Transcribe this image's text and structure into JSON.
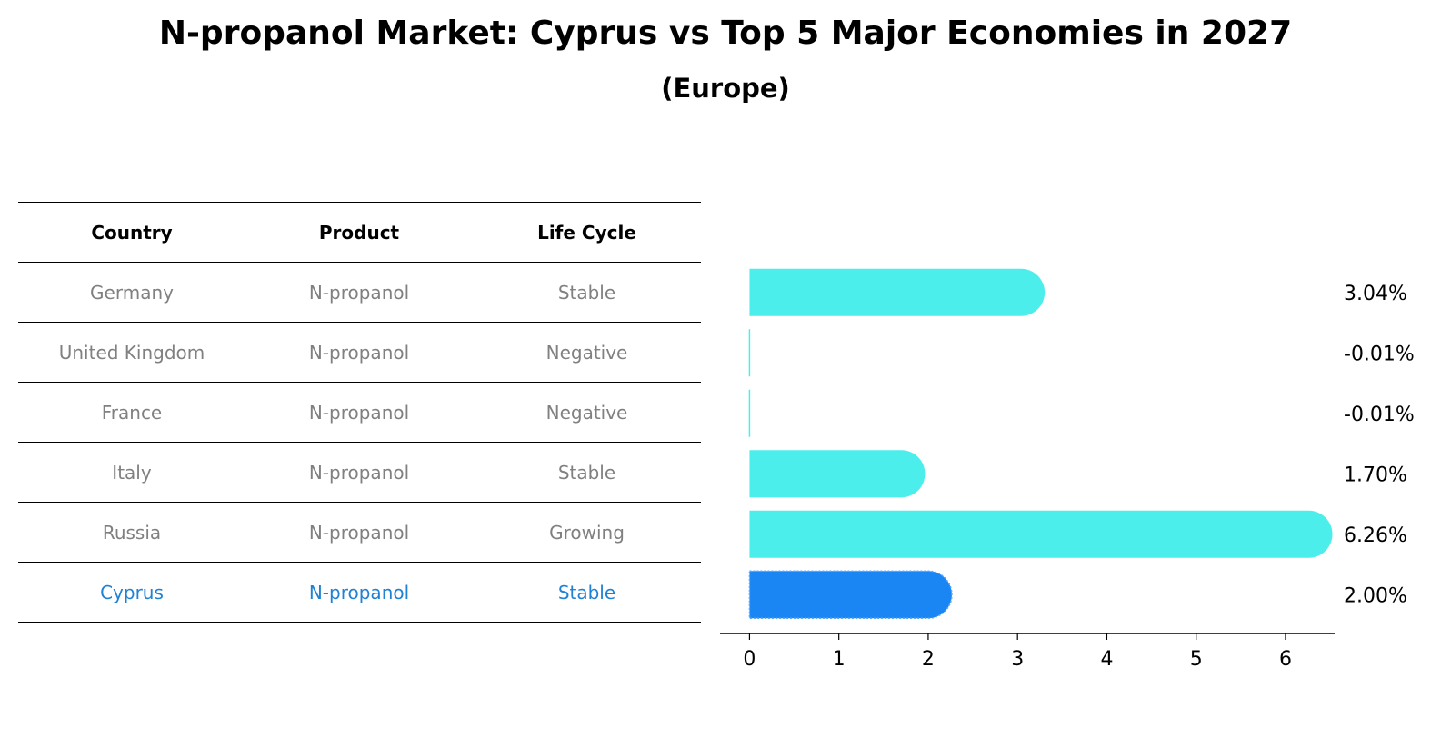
{
  "title": "N-propanol Market: Cyprus vs Top 5 Major Economies in 2027",
  "subtitle": "(Europe)",
  "table": {
    "headers": [
      "Country",
      "Product",
      "Life Cycle"
    ],
    "rows": [
      {
        "country": "Germany",
        "product": "N-propanol",
        "life_cycle": "Stable"
      },
      {
        "country": "United Kingdom",
        "product": "N-propanol",
        "life_cycle": "Negative"
      },
      {
        "country": "France",
        "product": "N-propanol",
        "life_cycle": "Negative"
      },
      {
        "country": "Italy",
        "product": "N-propanol",
        "life_cycle": "Stable"
      },
      {
        "country": "Russia",
        "product": "N-propanol",
        "life_cycle": "Growing"
      },
      {
        "country": "Cyprus",
        "product": "N-propanol",
        "life_cycle": "Stable"
      }
    ],
    "highlight_row": "Cyprus",
    "text_color": "#808080",
    "highlight_color": "#1f82d4"
  },
  "chart_data": {
    "type": "bar",
    "orientation": "horizontal",
    "categories": [
      "Germany",
      "United Kingdom",
      "France",
      "Italy",
      "Russia",
      "Cyprus"
    ],
    "values": [
      3.04,
      -0.01,
      -0.01,
      1.7,
      6.26,
      2.0
    ],
    "value_labels": [
      "3.04%",
      "-0.01%",
      "-0.01%",
      "1.70%",
      "6.26%",
      "2.00%"
    ],
    "xlim": [
      -0.33,
      6.55
    ],
    "xticks": [
      0,
      1,
      2,
      3,
      4,
      5,
      6
    ],
    "bar_color": "#4ceeec",
    "highlight_color": "#1a86f3",
    "highlight_category": "Cyprus",
    "grid": false,
    "bar_end_style": "rounded"
  }
}
